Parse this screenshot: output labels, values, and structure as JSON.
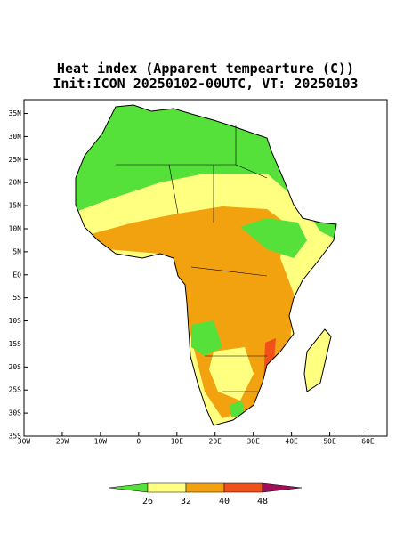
{
  "map": {
    "title": "Heat index (Apparent tempearture (C))",
    "subtitle": "Init:ICON 20250102-00UTC, VT: 20250103",
    "xlim": [
      -30,
      65
    ],
    "ylim": [
      -35,
      38
    ],
    "xticks": [
      {
        "value": -30,
        "label": "30W"
      },
      {
        "value": -20,
        "label": "20W"
      },
      {
        "value": -10,
        "label": "10W"
      },
      0,
      {
        "value": 10,
        "label": "10E"
      },
      {
        "value": 20,
        "label": "20E"
      },
      {
        "value": 30,
        "label": "30E"
      },
      {
        "value": 40,
        "label": "40E"
      },
      {
        "value": 50,
        "label": "50E"
      },
      {
        "value": 60,
        "label": "60E"
      }
    ],
    "yticks": [
      {
        "value": 35,
        "label": "35N"
      },
      {
        "value": 30,
        "label": "30N"
      },
      {
        "value": 25,
        "label": "25N"
      },
      {
        "value": 20,
        "label": "20N"
      },
      {
        "value": 15,
        "label": "15N"
      },
      {
        "value": 10,
        "label": "10N"
      },
      {
        "value": 5,
        "label": "5N"
      },
      {
        "value": 0,
        "label": "EQ"
      },
      {
        "value": -5,
        "label": "5S"
      },
      {
        "value": -10,
        "label": "10S"
      },
      {
        "value": -15,
        "label": "15S"
      },
      {
        "value": -20,
        "label": "20S"
      },
      {
        "value": -25,
        "label": "25S"
      },
      {
        "value": -30,
        "label": "30S"
      },
      {
        "value": -35,
        "label": "35S"
      }
    ],
    "colorbar": {
      "ticks": [
        26,
        32,
        40,
        48
      ],
      "colors": [
        "#55e03a",
        "#ffff80",
        "#f2a20e",
        "#f0501a",
        "#a0105a"
      ]
    }
  }
}
